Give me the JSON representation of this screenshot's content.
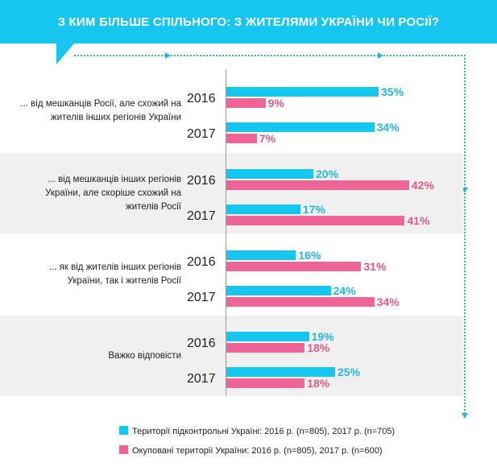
{
  "title": "З КИМ БІЛЬШЕ СПІЛЬНОГО: З ЖИТЕЛЯМИ УКРАЇНИ ЧИ РОСІЇ?",
  "colors": {
    "cyan": "#17c6ee",
    "pink": "#ee6497",
    "cyan_text": "#22b8e0",
    "pink_text": "#e05a8c"
  },
  "chart_data": {
    "type": "bar",
    "orientation": "horizontal",
    "title": "З КИМ БІЛЬШЕ СПІЛЬНОГО: З ЖИТЕЛЯМИ УКРАЇНИ ЧИ РОСІЇ?",
    "unit": "%",
    "categories": [
      {
        "label": "... від мешканців Росії, але схожий на жителів інших регіонів України",
        "lines": [
          "... від мешканців Росії, але схожий на",
          "жителів інших регіонів України"
        ]
      },
      {
        "label": "... від мешканців інших регіонів України, але скоріше схожий на жителів Росії",
        "lines": [
          "... від мешканців інших регіонів",
          "України, але скоріше схожий на",
          "жителів Росії"
        ]
      },
      {
        "label": "... як від жителів інших регіонів України, так і жителів Росії",
        "lines": [
          "... як від жителів інших регіонів",
          "України, так і жителів Росії"
        ]
      },
      {
        "label": "Важко відповісти",
        "lines": [
          "Важко відповісти"
        ]
      }
    ],
    "years": [
      "2016",
      "2017"
    ],
    "series": [
      {
        "name": "Території підконтрольні Україні:  2016 р. (n=805), 2017 р. (n=705)",
        "values": [
          [
            35,
            34
          ],
          [
            20,
            17
          ],
          [
            16,
            24
          ],
          [
            19,
            25
          ]
        ]
      },
      {
        "name": "Окуповані території України: 2016 р. (n=805), 2017 р. (n=600)",
        "values": [
          [
            9,
            7
          ],
          [
            42,
            41
          ],
          [
            31,
            34
          ],
          [
            18,
            18
          ]
        ]
      }
    ],
    "value_labels": [
      [
        [
          "35%",
          "34%"
        ],
        [
          "20%",
          "17%"
        ],
        [
          "16%",
          "24%"
        ],
        [
          "19%",
          "25%"
        ]
      ],
      [
        [
          "9%",
          "7%"
        ],
        [
          "42%",
          "41%"
        ],
        [
          "31%",
          "34%"
        ],
        [
          "18%",
          "18%"
        ]
      ]
    ],
    "legend_position": "bottom",
    "grid": false
  }
}
